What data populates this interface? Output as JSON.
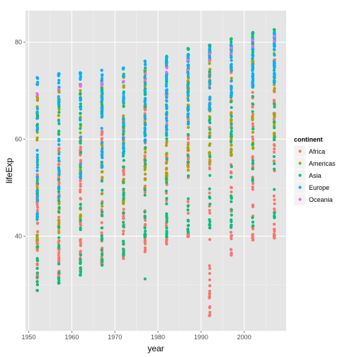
{
  "chart_data": {
    "type": "scatter",
    "title": "",
    "xlabel": "year",
    "ylabel": "lifeExp",
    "xlim": [
      1949.25,
      2009.75
    ],
    "ylim": [
      20.5,
      86.5
    ],
    "x_ticks": [
      1950,
      1960,
      1970,
      1980,
      1990,
      2000
    ],
    "y_ticks": [
      40,
      60,
      80
    ],
    "grid": true,
    "legend": {
      "title": "continent",
      "position": "right",
      "entries": [
        "Africa",
        "Americas",
        "Asia",
        "Europe",
        "Oceania"
      ]
    },
    "colors": {
      "Africa": "#f8766d",
      "Americas": "#a3a500",
      "Asia": "#00bf7d",
      "Europe": "#00b0f6",
      "Oceania": "#e76bf3"
    },
    "years": [
      1952,
      1957,
      1962,
      1967,
      1972,
      1977,
      1982,
      1987,
      1992,
      1997,
      2002,
      2007
    ],
    "series": [
      {
        "name": "Africa",
        "ranges": [
          [
            30.0,
            52.7
          ],
          [
            31.6,
            58.1
          ],
          [
            32.8,
            60.3
          ],
          [
            34.1,
            61.6
          ],
          [
            35.4,
            64.3
          ],
          [
            36.8,
            67.0
          ],
          [
            38.4,
            69.9
          ],
          [
            39.9,
            71.9
          ],
          [
            23.6,
            73.6
          ],
          [
            36.1,
            74.8
          ],
          [
            39.2,
            75.7
          ],
          [
            39.6,
            76.4
          ]
        ],
        "outliers": []
      },
      {
        "name": "Americas",
        "ranges": [
          [
            37.6,
            68.8
          ],
          [
            40.7,
            70.0
          ],
          [
            43.4,
            71.3
          ],
          [
            45.0,
            72.1
          ],
          [
            46.7,
            72.9
          ],
          [
            49.9,
            74.2
          ],
          [
            51.5,
            75.8
          ],
          [
            53.6,
            76.9
          ],
          [
            55.1,
            77.9
          ],
          [
            56.7,
            78.6
          ],
          [
            58.1,
            79.8
          ],
          [
            60.9,
            80.7
          ]
        ],
        "outliers": []
      },
      {
        "name": "Asia",
        "ranges": [
          [
            28.8,
            65.4
          ],
          [
            30.3,
            67.8
          ],
          [
            32.0,
            69.4
          ],
          [
            34.0,
            71.4
          ],
          [
            36.1,
            73.4
          ],
          [
            39.9,
            75.4
          ],
          [
            39.9,
            77.1
          ],
          [
            40.8,
            78.7
          ],
          [
            41.7,
            79.4
          ],
          [
            41.8,
            80.7
          ],
          [
            42.1,
            82.0
          ],
          [
            43.8,
            82.6
          ]
        ],
        "outliers": [
          [
            1977,
            31.2
          ]
        ]
      },
      {
        "name": "Europe",
        "ranges": [
          [
            43.6,
            72.7
          ],
          [
            48.1,
            73.5
          ],
          [
            52.1,
            73.7
          ],
          [
            54.3,
            74.2
          ],
          [
            57.0,
            74.7
          ],
          [
            59.5,
            76.1
          ],
          [
            61.0,
            76.9
          ],
          [
            63.1,
            77.4
          ],
          [
            66.1,
            78.8
          ],
          [
            68.8,
            79.4
          ],
          [
            70.8,
            80.6
          ],
          [
            71.8,
            81.8
          ]
        ],
        "outliers": []
      },
      {
        "name": "Oceania",
        "ranges": [
          [
            69.1,
            69.4
          ],
          [
            70.3,
            70.3
          ],
          [
            70.9,
            71.2
          ],
          [
            71.1,
            71.5
          ],
          [
            71.9,
            71.9
          ],
          [
            72.2,
            73.5
          ],
          [
            73.8,
            74.7
          ],
          [
            74.3,
            76.3
          ],
          [
            76.3,
            77.6
          ],
          [
            77.6,
            78.8
          ],
          [
            79.1,
            80.4
          ],
          [
            80.2,
            81.2
          ]
        ],
        "outliers": []
      }
    ]
  }
}
